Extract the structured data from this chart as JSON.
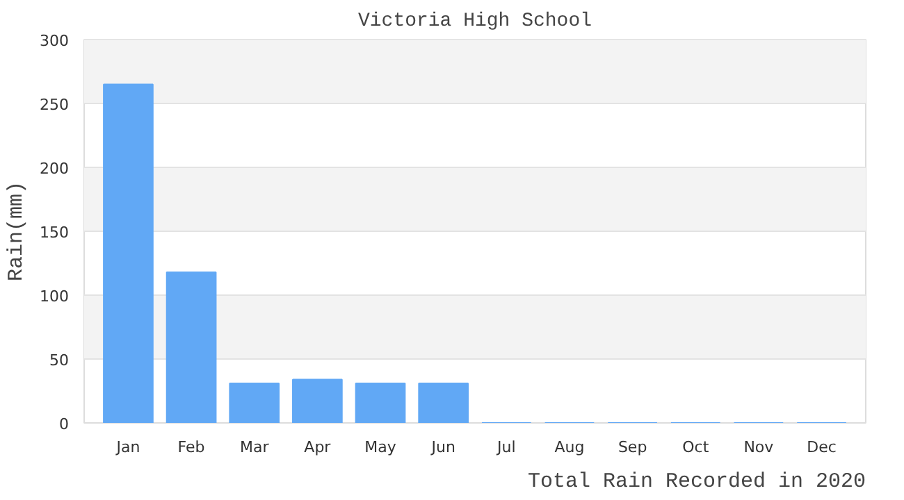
{
  "chart_data": {
    "type": "bar",
    "title": "Victoria High School",
    "xlabel": "Total Rain Recorded in 2020",
    "ylabel": "Rain(mm)",
    "categories": [
      "Jan",
      "Feb",
      "Mar",
      "Apr",
      "May",
      "Jun",
      "Jul",
      "Aug",
      "Sep",
      "Oct",
      "Nov",
      "Dec"
    ],
    "values": [
      265,
      118,
      31,
      34,
      31,
      31,
      0,
      0,
      0,
      0,
      0,
      0
    ],
    "color": "#61a8f5",
    "ylim": [
      0,
      300
    ],
    "yticks": [
      0,
      50,
      100,
      150,
      200,
      250,
      300
    ],
    "grid": "y"
  }
}
